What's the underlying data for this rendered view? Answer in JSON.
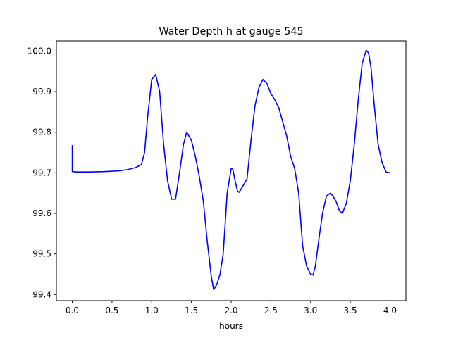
{
  "chart_data": {
    "type": "line",
    "title": "Water Depth h at gauge 545",
    "xlabel": "hours",
    "ylabel": "",
    "xlim": [
      -0.2,
      4.2
    ],
    "ylim": [
      99.385,
      100.025
    ],
    "xticks": [
      0.0,
      0.5,
      1.0,
      1.5,
      2.0,
      2.5,
      3.0,
      3.5,
      4.0
    ],
    "xtick_labels": [
      "0.0",
      "0.5",
      "1.0",
      "1.5",
      "2.0",
      "2.5",
      "3.0",
      "3.5",
      "4.0"
    ],
    "yticks": [
      99.4,
      99.5,
      99.6,
      99.7,
      99.8,
      99.9,
      100.0
    ],
    "ytick_labels": [
      "99.4",
      "99.5",
      "99.6",
      "99.7",
      "99.8",
      "99.9",
      "100.0"
    ],
    "grid": false,
    "legend": "none",
    "series": [
      {
        "color": "#0000ff",
        "x": [
          0.0,
          0.0,
          0.05,
          0.2,
          0.4,
          0.6,
          0.7,
          0.8,
          0.87,
          0.91,
          0.95,
          1.0,
          1.05,
          1.1,
          1.15,
          1.2,
          1.25,
          1.3,
          1.35,
          1.4,
          1.44,
          1.5,
          1.55,
          1.6,
          1.65,
          1.7,
          1.75,
          1.78,
          1.82,
          1.86,
          1.9,
          1.95,
          2.0,
          2.02,
          2.05,
          2.08,
          2.1,
          2.15,
          2.2,
          2.25,
          2.3,
          2.35,
          2.4,
          2.45,
          2.5,
          2.55,
          2.6,
          2.65,
          2.7,
          2.75,
          2.8,
          2.85,
          2.9,
          2.95,
          3.0,
          3.03,
          3.06,
          3.1,
          3.15,
          3.2,
          3.25,
          3.28,
          3.32,
          3.36,
          3.4,
          3.45,
          3.5,
          3.55,
          3.6,
          3.65,
          3.7,
          3.73,
          3.76,
          3.8,
          3.85,
          3.9,
          3.95,
          4.0
        ],
        "y": [
          99.768,
          99.703,
          99.702,
          99.702,
          99.703,
          99.705,
          99.708,
          99.713,
          99.72,
          99.75,
          99.84,
          99.93,
          99.942,
          99.9,
          99.77,
          99.68,
          99.635,
          99.635,
          99.7,
          99.77,
          99.8,
          99.78,
          99.74,
          99.69,
          99.63,
          99.53,
          99.445,
          99.412,
          99.425,
          99.45,
          99.5,
          99.65,
          99.71,
          99.71,
          99.68,
          99.655,
          99.652,
          99.668,
          99.685,
          99.78,
          99.865,
          99.91,
          99.93,
          99.92,
          99.895,
          99.88,
          99.86,
          99.825,
          99.79,
          99.74,
          99.71,
          99.65,
          99.52,
          99.47,
          99.45,
          99.448,
          99.47,
          99.53,
          99.6,
          99.643,
          99.65,
          99.643,
          99.63,
          99.608,
          99.6,
          99.625,
          99.68,
          99.77,
          99.88,
          99.97,
          100.002,
          99.995,
          99.96,
          99.87,
          99.77,
          99.725,
          99.702,
          99.7
        ]
      }
    ]
  }
}
